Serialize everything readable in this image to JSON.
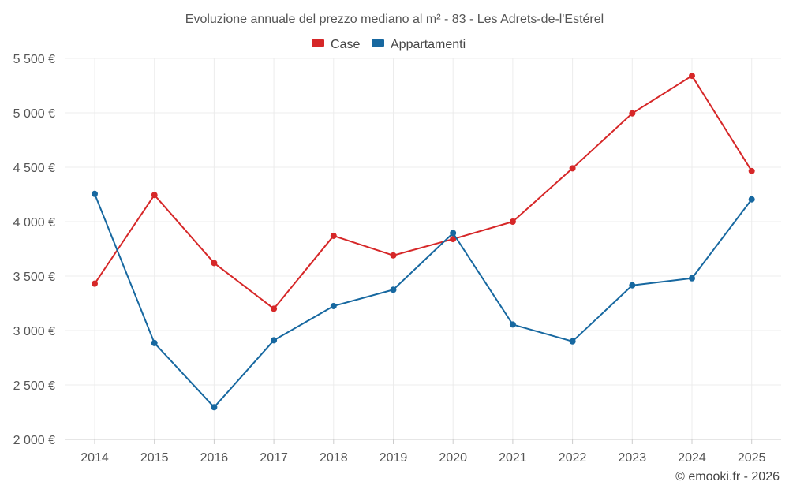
{
  "chart_data": {
    "type": "line",
    "title": "Evoluzione annuale del prezzo mediano al m² - 83 - Les Adrets-de-l'Estérel",
    "categories": [
      "2014",
      "2015",
      "2016",
      "2017",
      "2018",
      "2019",
      "2020",
      "2021",
      "2022",
      "2023",
      "2024",
      "2025"
    ],
    "ylim": [
      2000,
      5500
    ],
    "yticks": [
      2000,
      2500,
      3000,
      3500,
      4000,
      4500,
      5000,
      5500
    ],
    "ytick_labels": [
      "2 000 €",
      "2 500 €",
      "3 000 €",
      "3 500 €",
      "4 000 €",
      "4 500 €",
      "5 000 €",
      "5 500 €"
    ],
    "grid": true,
    "legend_position": "top-center",
    "series": [
      {
        "name": "Case",
        "color": "#d62728",
        "values": [
          3430,
          4245,
          3620,
          3200,
          3870,
          3690,
          3840,
          4000,
          4490,
          4995,
          5340,
          4465
        ]
      },
      {
        "name": "Appartamenti",
        "color": "#1768a0",
        "values": [
          4255,
          2885,
          2295,
          2910,
          3225,
          3375,
          3895,
          3055,
          2900,
          3415,
          3480,
          4205
        ]
      }
    ]
  },
  "credit": "© emooki.fr - 2026"
}
